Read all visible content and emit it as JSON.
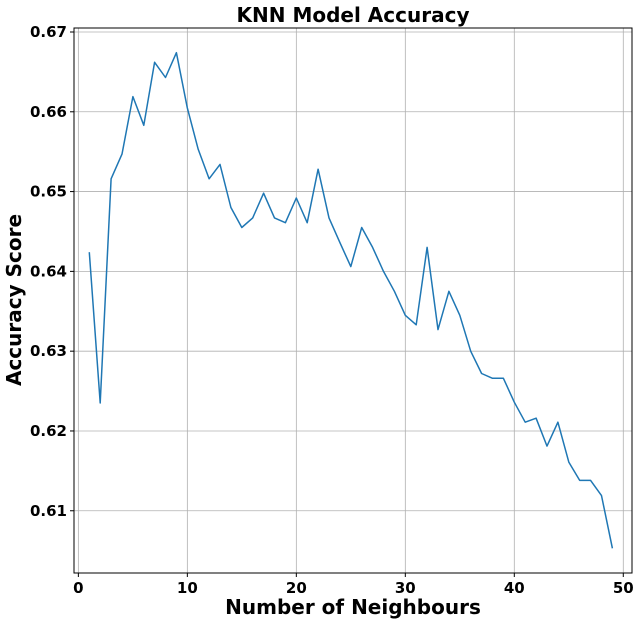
{
  "chart_data": {
    "type": "line",
    "title": "KNN Model Accuracy",
    "xlabel": "Number of Neighbours",
    "ylabel": "Accuracy Score",
    "xlim": [
      -0.4,
      50.8
    ],
    "ylim": [
      0.6022,
      0.6705
    ],
    "x_ticks": [
      0,
      10,
      20,
      30,
      40,
      50
    ],
    "x_tick_labels": [
      "0",
      "10",
      "20",
      "30",
      "40",
      "50"
    ],
    "y_ticks": [
      0.61,
      0.62,
      0.63,
      0.64,
      0.65,
      0.66,
      0.67
    ],
    "y_tick_labels": [
      "0.61",
      "0.62",
      "0.63",
      "0.64",
      "0.65",
      "0.66",
      "0.67"
    ],
    "grid": true,
    "color": "#1f77b4",
    "series": [
      {
        "x": [
          1,
          2,
          3,
          4,
          5,
          6,
          7,
          8,
          9,
          10,
          11,
          12,
          13,
          14,
          15,
          16,
          17,
          18,
          19,
          20,
          21,
          22,
          23,
          24,
          25,
          26,
          27,
          28,
          29,
          30,
          31,
          32,
          33,
          34,
          35,
          36,
          37,
          38,
          39,
          40,
          41,
          42,
          43,
          44,
          45,
          46,
          47,
          48,
          49
        ],
        "values": [
          0.6424,
          0.6235,
          0.6516,
          0.6547,
          0.6619,
          0.6583,
          0.6662,
          0.6643,
          0.6674,
          0.6605,
          0.6553,
          0.6516,
          0.6534,
          0.648,
          0.6455,
          0.6467,
          0.6498,
          0.6467,
          0.6461,
          0.6492,
          0.6461,
          0.6528,
          0.6467,
          0.6436,
          0.6406,
          0.6455,
          0.643,
          0.64,
          0.6375,
          0.6345,
          0.6333,
          0.643,
          0.6327,
          0.6375,
          0.6345,
          0.63,
          0.6272,
          0.6266,
          0.6266,
          0.6236,
          0.6211,
          0.6216,
          0.6181,
          0.6211,
          0.6161,
          0.6138,
          0.6138,
          0.6119,
          0.6053
        ]
      }
    ]
  }
}
